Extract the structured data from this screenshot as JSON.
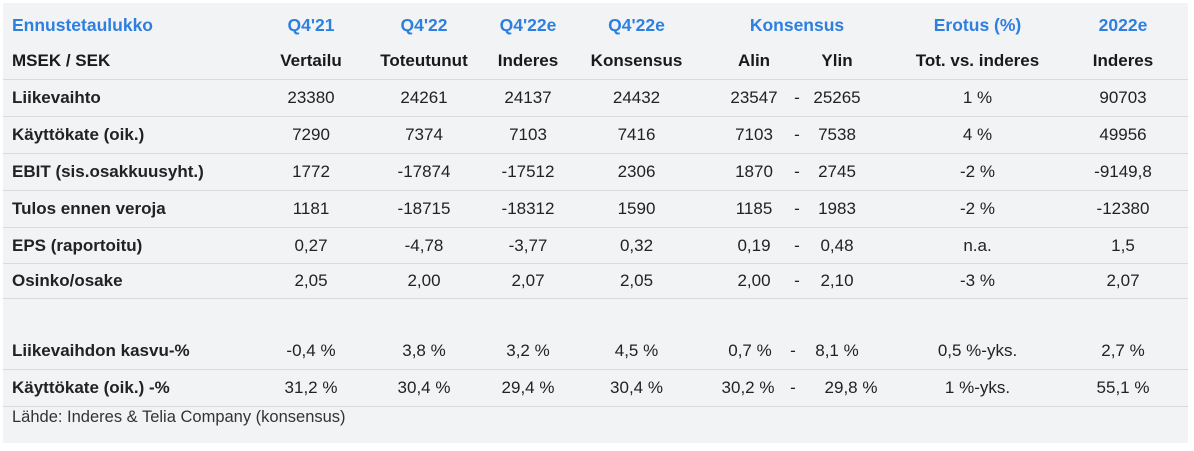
{
  "header": {
    "title": "Ennustetaulukko",
    "q421": "Q4'21",
    "q422": "Q4'22",
    "q422e_inderes": "Q4'22e",
    "q422e_consensus": "Q4'22e",
    "consensus": "Konsensus",
    "difference": "Erotus (%)",
    "y2022e": "2022e"
  },
  "subheader": {
    "unit": "MSEK / SEK",
    "q421": "Vertailu",
    "q422": "Toteutunut",
    "q422e_inderes": "Inderes",
    "q422e_consensus": "Konsensus",
    "low": "Alin",
    "high": "Ylin",
    "difference": "Tot. vs. inderes",
    "y2022e": "Inderes"
  },
  "rows": [
    {
      "label": "Liikevaihto",
      "q421": "23380",
      "q422": "24261",
      "inderes": "24137",
      "consensus": "24432",
      "low": "23547",
      "dash": "-",
      "high": "25265",
      "diff": "1 %",
      "y2022e": "90703"
    },
    {
      "label": "Käyttökate (oik.)",
      "q421": "7290",
      "q422": "7374",
      "inderes": "7103",
      "consensus": "7416",
      "low": "7103",
      "dash": "-",
      "high": "7538",
      "diff": "4 %",
      "y2022e": "49956"
    },
    {
      "label": "EBIT (sis.osakkuusyht.)",
      "q421": "1772",
      "q422": "-17874",
      "inderes": "-17512",
      "consensus": "2306",
      "low": "1870",
      "dash": "-",
      "high": "2745",
      "diff": "-2 %",
      "y2022e": "-9149,8"
    },
    {
      "label": "Tulos ennen veroja",
      "q421": "1181",
      "q422": "-18715",
      "inderes": "-18312",
      "consensus": "1590",
      "low": "1185",
      "dash": "-",
      "high": "1983",
      "diff": "-2 %",
      "y2022e": "-12380"
    },
    {
      "label": "EPS (raportoitu)",
      "q421": "0,27",
      "q422": "-4,78",
      "inderes": "-3,77",
      "consensus": "0,32",
      "low": "0,19",
      "dash": "-",
      "high": "0,48",
      "diff": "n.a.",
      "y2022e": "1,5"
    },
    {
      "label": "Osinko/osake",
      "q421": "2,05",
      "q422": "2,00",
      "inderes": "2,07",
      "consensus": "2,05",
      "low": "2,00",
      "dash": "-",
      "high": "2,10",
      "diff": "-3 %",
      "y2022e": "2,07"
    }
  ],
  "growth_rows": [
    {
      "label": "Liikevaihdon kasvu-%",
      "q421": "-0,4 %",
      "q422": "3,8 %",
      "inderes": "3,2 %",
      "consensus": "4,5 %",
      "low": "0,7 %",
      "dash": "-",
      "high": "8,1 %",
      "diff": "0,5 %-yks.",
      "y2022e": "2,7 %"
    },
    {
      "label": "Käyttökate (oik.) -%",
      "q421": "31,2 %",
      "q422": "30,4 %",
      "inderes": "29,4 %",
      "consensus": "30,4 %",
      "low": "30,2 %",
      "dash": "-",
      "high": "29,8 %",
      "diff": "1 %-yks.",
      "y2022e": "55,1 %"
    }
  ],
  "source": "Lähde: Inderes & Telia Company (konsensus)"
}
